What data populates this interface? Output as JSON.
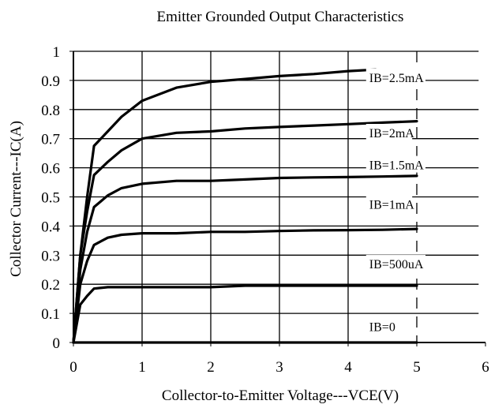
{
  "chart_data": {
    "type": "line",
    "title": "Emitter Grounded Output Characteristics",
    "xlabel": "Collector-to-Emitter Voltage---VCE(V)",
    "ylabel": "Collector Current---IC(A)",
    "xlim": [
      0,
      6
    ],
    "ylim": [
      0,
      1
    ],
    "xticks": [
      "0",
      "1",
      "2",
      "3",
      "4",
      "5",
      "6"
    ],
    "yticks": [
      "0",
      "0.1",
      "0.2",
      "0.3",
      "0.4",
      "0.5",
      "0.6",
      "0.7",
      "0.8",
      "0.9",
      "1"
    ],
    "grid": "horizontal lines plus vertical lines at x=1,2,3,4; dashed vertical line at x=5",
    "legend": "inline curve labels",
    "series": [
      {
        "name": "IB=2.5mA",
        "label_at": [
          4.4,
          0.9
        ],
        "x": [
          0,
          0.1,
          0.2,
          0.3,
          0.5,
          0.7,
          1.0,
          1.5,
          2.0,
          2.5,
          3.0,
          3.5,
          4.0,
          4.4
        ],
        "y": [
          0,
          0.3,
          0.5,
          0.675,
          0.725,
          0.775,
          0.83,
          0.875,
          0.895,
          0.905,
          0.915,
          0.922,
          0.932,
          0.937
        ]
      },
      {
        "name": "IB=2mA",
        "label_at": [
          4.4,
          0.71
        ],
        "x": [
          0,
          0.1,
          0.2,
          0.3,
          0.5,
          0.7,
          1.0,
          1.5,
          2.0,
          2.5,
          3.0,
          3.5,
          4.0,
          4.5,
          5.0
        ],
        "y": [
          0,
          0.3,
          0.45,
          0.575,
          0.62,
          0.66,
          0.7,
          0.72,
          0.725,
          0.735,
          0.74,
          0.745,
          0.75,
          0.755,
          0.76
        ]
      },
      {
        "name": "IB=1.5mA",
        "label_at": [
          4.4,
          0.6
        ],
        "x": [
          0,
          0.1,
          0.2,
          0.3,
          0.5,
          0.7,
          1.0,
          1.5,
          2.0,
          2.5,
          3.0,
          3.5,
          4.0,
          4.5,
          5.0
        ],
        "y": [
          0,
          0.25,
          0.38,
          0.465,
          0.505,
          0.53,
          0.545,
          0.555,
          0.555,
          0.56,
          0.565,
          0.567,
          0.568,
          0.57,
          0.572
        ]
      },
      {
        "name": "IB=1mA",
        "label_at": [
          4.4,
          0.465
        ],
        "x": [
          0,
          0.1,
          0.2,
          0.3,
          0.5,
          0.7,
          1.0,
          1.5,
          2.0,
          2.5,
          3.0,
          3.5,
          4.0,
          4.5,
          5.0
        ],
        "y": [
          0,
          0.2,
          0.28,
          0.335,
          0.36,
          0.37,
          0.375,
          0.375,
          0.38,
          0.38,
          0.383,
          0.385,
          0.386,
          0.387,
          0.39
        ]
      },
      {
        "name": "IB=500uA",
        "label_at": [
          4.4,
          0.26
        ],
        "x": [
          0,
          0.1,
          0.2,
          0.3,
          0.5,
          1.0,
          1.5,
          2.0,
          2.5,
          3.0,
          3.5,
          4.0,
          4.5,
          5.0
        ],
        "y": [
          0,
          0.13,
          0.16,
          0.185,
          0.19,
          0.19,
          0.19,
          0.19,
          0.195,
          0.195,
          0.195,
          0.195,
          0.195,
          0.195
        ]
      },
      {
        "name": "IB=0",
        "label_at": [
          4.4,
          0.045
        ],
        "x": [
          0,
          5.0
        ],
        "y": [
          0,
          0
        ]
      }
    ]
  }
}
